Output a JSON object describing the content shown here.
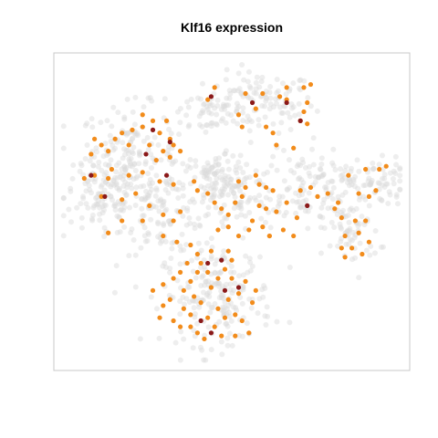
{
  "chart_data": {
    "type": "scatter",
    "title": "Klf16 expression",
    "xlabel": "",
    "ylabel": "",
    "xlim": [
      0,
      100
    ],
    "ylim": [
      0,
      100
    ],
    "grid": false,
    "colors": {
      "background_cells": "#d9d9d9",
      "expressed": "#f28c1b",
      "high": "#8b1a1a",
      "frame": "#c8c8c8"
    },
    "clusters": [
      {
        "cx": 58,
        "cy": 86,
        "sx": 8,
        "sy": 5,
        "n": 120
      },
      {
        "cx": 42,
        "cy": 83,
        "sx": 5,
        "sy": 4,
        "n": 40
      },
      {
        "cx": 20,
        "cy": 69,
        "sx": 7,
        "sy": 8,
        "n": 160
      },
      {
        "cx": 12,
        "cy": 55,
        "sx": 6,
        "sy": 7,
        "n": 110
      },
      {
        "cx": 30,
        "cy": 50,
        "sx": 6,
        "sy": 7,
        "n": 110
      },
      {
        "cx": 49,
        "cy": 57,
        "sx": 7,
        "sy": 7,
        "n": 140
      },
      {
        "cx": 70,
        "cy": 58,
        "sx": 6,
        "sy": 7,
        "n": 90
      },
      {
        "cx": 88,
        "cy": 60,
        "sx": 7,
        "sy": 4,
        "n": 90
      },
      {
        "cx": 85,
        "cy": 44,
        "sx": 4,
        "sy": 6,
        "n": 70
      },
      {
        "cx": 46,
        "cy": 22,
        "sx": 8,
        "sy": 8,
        "n": 200
      },
      {
        "cx": 44,
        "cy": 62,
        "sx": 2,
        "sy": 3,
        "n": 25
      }
    ],
    "expressed_points": [
      [
        45,
        91
      ],
      [
        43,
        87
      ],
      [
        54,
        89
      ],
      [
        59,
        89
      ],
      [
        64,
        88
      ],
      [
        66,
        91
      ],
      [
        71,
        91
      ],
      [
        73,
        92
      ],
      [
        66,
        87
      ],
      [
        57,
        84
      ],
      [
        52,
        82
      ],
      [
        71,
        83
      ],
      [
        72,
        86
      ],
      [
        53,
        78
      ],
      [
        60,
        78
      ],
      [
        62,
        76
      ],
      [
        63,
        72
      ],
      [
        68,
        71
      ],
      [
        72,
        79
      ],
      [
        70,
        80
      ],
      [
        24,
        82
      ],
      [
        27,
        80
      ],
      [
        31,
        80
      ],
      [
        24,
        78
      ],
      [
        21,
        77
      ],
      [
        29,
        76
      ],
      [
        32,
        74
      ],
      [
        30,
        70
      ],
      [
        33,
        72
      ],
      [
        18,
        76
      ],
      [
        16,
        74
      ],
      [
        10,
        74
      ],
      [
        12,
        72
      ],
      [
        9,
        69
      ],
      [
        14,
        70
      ],
      [
        20,
        72
      ],
      [
        26,
        72
      ],
      [
        28,
        67
      ],
      [
        32,
        68
      ],
      [
        35,
        70
      ],
      [
        15,
        64
      ],
      [
        10,
        62
      ],
      [
        7,
        61
      ],
      [
        14,
        61
      ],
      [
        20,
        62
      ],
      [
        24,
        63
      ],
      [
        29,
        60
      ],
      [
        33,
        59
      ],
      [
        22,
        56
      ],
      [
        18,
        54
      ],
      [
        12,
        55
      ],
      [
        26,
        52
      ],
      [
        30,
        49
      ],
      [
        33,
        47
      ],
      [
        35,
        50
      ],
      [
        24,
        47
      ],
      [
        18,
        47
      ],
      [
        14,
        43
      ],
      [
        30,
        42
      ],
      [
        34,
        40
      ],
      [
        38,
        39
      ],
      [
        39,
        60
      ],
      [
        40,
        57
      ],
      [
        43,
        56
      ],
      [
        45,
        53
      ],
      [
        47,
        51
      ],
      [
        49,
        49
      ],
      [
        51,
        53
      ],
      [
        53,
        55
      ],
      [
        52,
        60
      ],
      [
        54,
        58
      ],
      [
        49,
        45
      ],
      [
        46,
        44
      ],
      [
        52,
        42
      ],
      [
        56,
        47
      ],
      [
        58,
        52
      ],
      [
        58,
        59
      ],
      [
        57,
        62
      ],
      [
        60,
        51
      ],
      [
        59,
        45
      ],
      [
        55,
        44
      ],
      [
        61,
        42
      ],
      [
        63,
        50
      ],
      [
        60,
        58
      ],
      [
        62,
        57
      ],
      [
        61,
        42
      ],
      [
        65,
        44
      ],
      [
        68,
        42
      ],
      [
        69,
        48
      ],
      [
        66,
        53
      ],
      [
        70,
        57
      ],
      [
        73,
        58
      ],
      [
        75,
        55
      ],
      [
        78,
        56
      ],
      [
        80,
        51
      ],
      [
        82,
        48
      ],
      [
        81,
        53
      ],
      [
        83,
        42
      ],
      [
        85,
        38
      ],
      [
        87,
        43
      ],
      [
        88,
        36
      ],
      [
        83,
        35
      ],
      [
        90,
        40
      ],
      [
        86,
        47
      ],
      [
        89,
        47
      ],
      [
        82,
        38
      ],
      [
        89,
        64
      ],
      [
        93,
        64
      ],
      [
        95,
        65
      ],
      [
        84,
        62
      ],
      [
        87,
        56
      ],
      [
        90,
        55
      ],
      [
        92,
        57
      ],
      [
        27,
        24
      ],
      [
        30,
        26
      ],
      [
        33,
        28
      ],
      [
        35,
        30
      ],
      [
        38,
        27
      ],
      [
        40,
        30
      ],
      [
        41,
        33
      ],
      [
        43,
        30
      ],
      [
        44,
        25
      ],
      [
        46,
        28
      ],
      [
        48,
        31
      ],
      [
        50,
        34
      ],
      [
        50,
        28
      ],
      [
        52,
        23
      ],
      [
        49,
        21
      ],
      [
        46,
        18
      ],
      [
        41,
        20
      ],
      [
        38,
        16
      ],
      [
        36,
        18
      ],
      [
        33,
        14
      ],
      [
        35,
        12
      ],
      [
        38,
        12
      ],
      [
        40,
        10
      ],
      [
        42,
        8
      ],
      [
        45,
        12
      ],
      [
        48,
        15
      ],
      [
        51,
        16
      ],
      [
        53,
        14
      ],
      [
        55,
        10
      ],
      [
        51,
        9
      ],
      [
        47,
        9
      ],
      [
        43,
        15
      ],
      [
        39,
        22
      ],
      [
        36,
        24
      ],
      [
        32,
        21
      ],
      [
        30,
        19
      ],
      [
        29,
        15
      ],
      [
        56,
        20
      ],
      [
        57,
        24
      ],
      [
        54,
        27
      ],
      [
        49,
        37
      ],
      [
        44,
        37
      ],
      [
        40,
        36
      ],
      [
        37,
        33
      ]
    ],
    "high_points": [
      [
        44,
        88
      ],
      [
        56,
        86
      ],
      [
        66,
        86
      ],
      [
        70,
        80
      ],
      [
        27,
        77
      ],
      [
        32,
        73
      ],
      [
        25,
        69
      ],
      [
        9,
        62
      ],
      [
        31,
        62
      ],
      [
        13,
        55
      ],
      [
        72,
        52
      ],
      [
        43,
        33
      ],
      [
        48,
        24
      ],
      [
        52,
        25
      ],
      [
        44,
        10
      ],
      [
        41,
        14
      ],
      [
        47,
        34
      ]
    ]
  }
}
